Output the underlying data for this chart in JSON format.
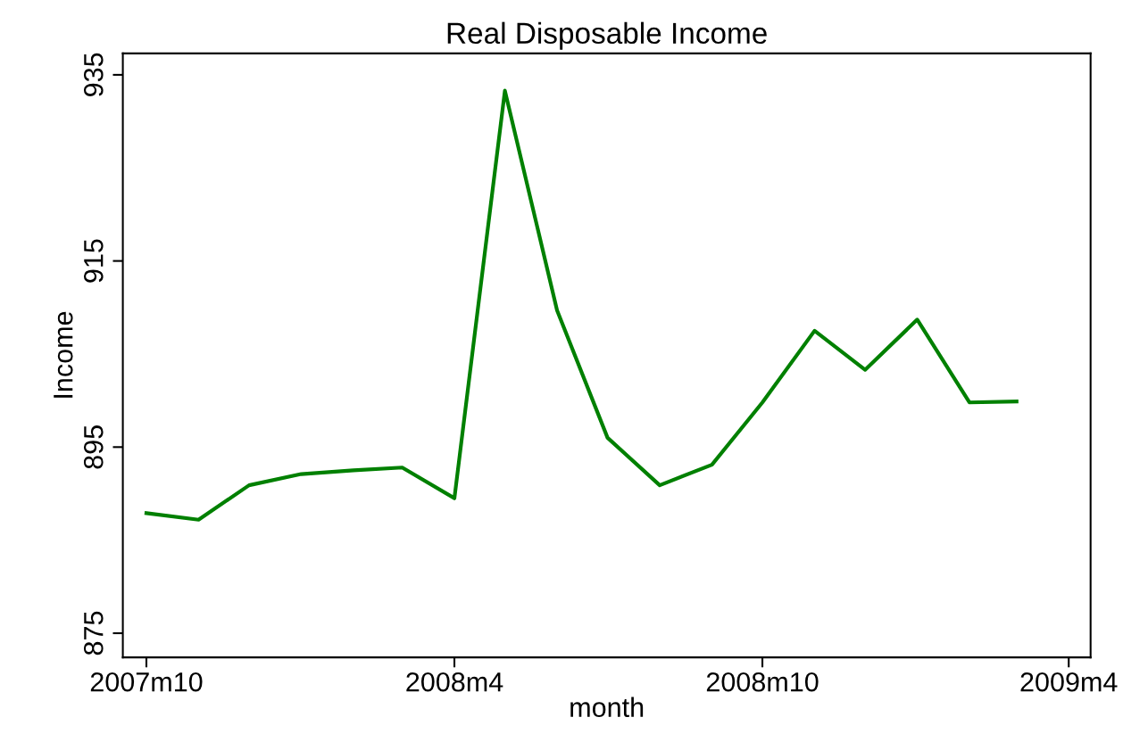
{
  "chart_data": {
    "type": "line",
    "title": "Real Disposable Income",
    "xlabel": "month",
    "ylabel": "Income",
    "x": [
      "2007-10",
      "2007-11",
      "2007-12",
      "2008-01",
      "2008-02",
      "2008-03",
      "2008-04",
      "2008-05",
      "2008-06",
      "2008-07",
      "2008-08",
      "2008-09",
      "2008-10",
      "2008-11",
      "2008-12",
      "2009-01",
      "2009-02",
      "2009-03"
    ],
    "series": [
      {
        "color": "#008000",
        "values": [
          887.9,
          887.2,
          890.9,
          892.1,
          892.5,
          892.8,
          889.5,
          933.3,
          909.7,
          896.0,
          890.9,
          893.1,
          899.8,
          907.5,
          903.3,
          908.7,
          899.8,
          899.9
        ]
      }
    ],
    "xlim": [
      "2007-09-17",
      "2009-04-14"
    ],
    "xticks": [
      {
        "value": "2007-10",
        "label": "2007m10"
      },
      {
        "value": "2008-04",
        "label": "2008m4"
      },
      {
        "value": "2008-10",
        "label": "2008m10"
      },
      {
        "value": "2009-04",
        "label": "2009m4"
      }
    ],
    "ylim": [
      872.4,
      937.3
    ],
    "yticks": [
      875,
      895,
      915,
      935
    ],
    "grid": false,
    "marker": "none",
    "line_style": "solid"
  }
}
